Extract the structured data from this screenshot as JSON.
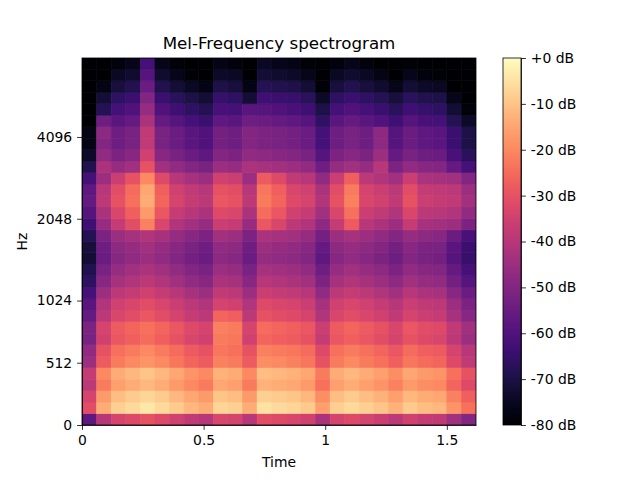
{
  "chart_data": {
    "type": "heatmap",
    "title": "Mel-Frequency spectrogram",
    "x_label": "Time",
    "y_label": "Hz",
    "color": "magma",
    "xlim": [
      0,
      1.62
    ],
    "ylim": [
      0,
      8000
    ],
    "xticks": [
      0,
      0.5,
      1,
      1.5
    ],
    "yticks": [
      0,
      512,
      1024,
      2048,
      4096
    ],
    "x_bins": [
      0,
      0.06,
      0.12,
      0.18,
      0.24,
      0.3,
      0.36,
      0.42,
      0.48,
      0.54,
      0.6,
      0.66,
      0.72,
      0.78,
      0.84,
      0.9,
      0.96,
      1.02,
      1.08,
      1.14,
      1.2,
      1.26,
      1.32,
      1.38,
      1.44,
      1.5,
      1.56,
      1.62
    ],
    "y_bins": [
      0,
      94,
      189,
      283,
      377,
      472,
      566,
      660,
      755,
      849,
      943,
      1039,
      1146,
      1263,
      1392,
      1534,
      1691,
      1863,
      2053,
      2263,
      2494,
      2748,
      3029,
      3339,
      3680,
      4055,
      4469,
      4926,
      5428,
      5982,
      6593,
      7270,
      8000
    ],
    "cells": [
      [
        -57,
        -40,
        -34,
        -32,
        -30,
        -32,
        -35,
        -38,
        -40,
        -33,
        -34,
        -40,
        -31,
        -32,
        -33,
        -35,
        -42,
        -34,
        -32,
        -34,
        -36,
        -39,
        -35,
        -37,
        -38,
        -44,
        -50
      ],
      [
        -31,
        -14,
        -8,
        -6,
        -4,
        -6,
        -9,
        -12,
        -14,
        -7,
        -8,
        -14,
        -5,
        -6,
        -7,
        -9,
        -16,
        -8,
        -6,
        -8,
        -10,
        -13,
        -9,
        -11,
        -12,
        -18,
        -24
      ],
      [
        -34,
        -17,
        -11,
        -9,
        -7,
        -9,
        -12,
        -15,
        -17,
        -10,
        -11,
        -17,
        -8,
        -9,
        -10,
        -12,
        -19,
        -11,
        -9,
        -11,
        -13,
        -16,
        -12,
        -14,
        -15,
        -21,
        -27
      ],
      [
        -39,
        -22,
        -16,
        -14,
        -12,
        -14,
        -17,
        -20,
        -22,
        -15,
        -16,
        -22,
        -13,
        -14,
        -15,
        -17,
        -24,
        -16,
        -14,
        -16,
        -18,
        -21,
        -17,
        -19,
        -20,
        -26,
        -32
      ],
      [
        -37,
        -20,
        -14,
        -12,
        -10,
        -12,
        -15,
        -18,
        -20,
        -13,
        -14,
        -20,
        -11,
        -12,
        -13,
        -15,
        -22,
        -14,
        -12,
        -14,
        -16,
        -19,
        -15,
        -17,
        -18,
        -24,
        -30
      ],
      [
        -45,
        -28,
        -22,
        -20,
        -18,
        -20,
        -23,
        -26,
        -28,
        -21,
        -22,
        -28,
        -19,
        -20,
        -21,
        -23,
        -30,
        -22,
        -20,
        -22,
        -24,
        -27,
        -23,
        -25,
        -26,
        -32,
        -38
      ],
      [
        -47,
        -30,
        -24,
        -22,
        -20,
        -22,
        -25,
        -28,
        -30,
        -23,
        -24,
        -30,
        -21,
        -22,
        -23,
        -25,
        -32,
        -24,
        -22,
        -24,
        -26,
        -29,
        -25,
        -27,
        -28,
        -34,
        -40
      ],
      [
        -52,
        -35,
        -29,
        -27,
        -25,
        -27,
        -30,
        -33,
        -35,
        -22,
        -23,
        -35,
        -26,
        -27,
        -28,
        -30,
        -37,
        -29,
        -27,
        -29,
        -31,
        -34,
        -30,
        -32,
        -33,
        -39,
        -45
      ],
      [
        -51,
        -34,
        -28,
        -26,
        -24,
        -26,
        -29,
        -32,
        -34,
        -21,
        -22,
        -34,
        -25,
        -26,
        -27,
        -29,
        -36,
        -28,
        -26,
        -28,
        -30,
        -33,
        -29,
        -31,
        -32,
        -38,
        -44
      ],
      [
        -56,
        -39,
        -33,
        -31,
        -29,
        -31,
        -34,
        -37,
        -39,
        -26,
        -27,
        -39,
        -30,
        -31,
        -32,
        -34,
        -41,
        -33,
        -31,
        -33,
        -35,
        -38,
        -34,
        -36,
        -37,
        -43,
        -49
      ],
      [
        -58,
        -41,
        -35,
        -33,
        -31,
        -33,
        -36,
        -39,
        -41,
        -34,
        -35,
        -41,
        -32,
        -33,
        -34,
        -36,
        -43,
        -35,
        -33,
        -35,
        -37,
        -40,
        -36,
        -38,
        -39,
        -45,
        -51
      ],
      [
        -62,
        -45,
        -39,
        -37,
        -35,
        -37,
        -40,
        -43,
        -45,
        -38,
        -39,
        -45,
        -36,
        -37,
        -38,
        -40,
        -47,
        -39,
        -37,
        -39,
        -41,
        -44,
        -40,
        -42,
        -43,
        -49,
        -55
      ],
      [
        -66,
        -49,
        -43,
        -41,
        -39,
        -41,
        -44,
        -47,
        -49,
        -42,
        -43,
        -49,
        -40,
        -41,
        -42,
        -44,
        -51,
        -43,
        -41,
        -43,
        -45,
        -48,
        -44,
        -46,
        -47,
        -53,
        -59
      ],
      [
        -69,
        -52,
        -46,
        -44,
        -42,
        -44,
        -47,
        -50,
        -52,
        -45,
        -46,
        -52,
        -43,
        -44,
        -45,
        -47,
        -54,
        -46,
        -44,
        -46,
        -48,
        -51,
        -47,
        -49,
        -50,
        -56,
        -62
      ],
      [
        -72,
        -55,
        -49,
        -47,
        -45,
        -47,
        -50,
        -53,
        -55,
        -48,
        -49,
        -55,
        -46,
        -47,
        -48,
        -50,
        -57,
        -49,
        -47,
        -49,
        -51,
        -54,
        -50,
        -52,
        -53,
        -59,
        -65
      ],
      [
        -71,
        -54,
        -48,
        -46,
        -44,
        -46,
        -49,
        -52,
        -54,
        -47,
        -48,
        -54,
        -45,
        -46,
        -47,
        -49,
        -56,
        -48,
        -46,
        -48,
        -50,
        -53,
        -49,
        -51,
        -52,
        -58,
        -64
      ],
      [
        -68,
        -51,
        -45,
        -43,
        -41,
        -43,
        -46,
        -49,
        -51,
        -44,
        -45,
        -51,
        -42,
        -43,
        -44,
        -46,
        -53,
        -45,
        -43,
        -45,
        -47,
        -50,
        -46,
        -48,
        -49,
        -55,
        -61
      ],
      [
        -63,
        -46,
        -37,
        -31,
        -21,
        -33,
        -41,
        -44,
        -46,
        -36,
        -37,
        -46,
        -29,
        -33,
        -39,
        -41,
        -48,
        -37,
        -28,
        -40,
        -42,
        -45,
        -37,
        -43,
        -44,
        -45,
        -51
      ],
      [
        -59,
        -42,
        -33,
        -27,
        -17,
        -29,
        -37,
        -40,
        -42,
        -32,
        -33,
        -42,
        -25,
        -29,
        -35,
        -37,
        -44,
        -33,
        -24,
        -36,
        -38,
        -41,
        -33,
        -39,
        -40,
        -41,
        -47
      ],
      [
        -56,
        -39,
        -30,
        -24,
        -14,
        -26,
        -34,
        -37,
        -39,
        -29,
        -30,
        -39,
        -22,
        -26,
        -32,
        -34,
        -41,
        -30,
        -21,
        -33,
        -35,
        -38,
        -30,
        -36,
        -37,
        -38,
        -44
      ],
      [
        -57,
        -40,
        -31,
        -25,
        -15,
        -27,
        -35,
        -38,
        -40,
        -30,
        -31,
        -40,
        -23,
        -27,
        -33,
        -35,
        -42,
        -31,
        -22,
        -34,
        -36,
        -39,
        -31,
        -37,
        -38,
        -39,
        -45
      ],
      [
        -62,
        -45,
        -36,
        -30,
        -20,
        -32,
        -40,
        -43,
        -45,
        -35,
        -36,
        -45,
        -28,
        -32,
        -38,
        -40,
        -47,
        -36,
        -27,
        -39,
        -41,
        -44,
        -36,
        -42,
        -43,
        -44,
        -50
      ],
      [
        -69,
        -42,
        -46,
        -44,
        -30,
        -44,
        -47,
        -50,
        -52,
        -45,
        -46,
        -42,
        -43,
        -44,
        -45,
        -47,
        -54,
        -46,
        -44,
        -46,
        -40,
        -51,
        -47,
        -49,
        -50,
        -56,
        -62
      ],
      [
        -74,
        -47,
        -51,
        -49,
        -35,
        -49,
        -52,
        -55,
        -57,
        -50,
        -51,
        -47,
        -48,
        -49,
        -50,
        -52,
        -59,
        -51,
        -49,
        -51,
        -45,
        -56,
        -52,
        -54,
        -55,
        -61,
        -67
      ],
      [
        -77,
        -50,
        -54,
        -52,
        -38,
        -52,
        -55,
        -58,
        -60,
        -53,
        -54,
        -50,
        -51,
        -52,
        -53,
        -55,
        -62,
        -54,
        -52,
        -54,
        -48,
        -59,
        -55,
        -57,
        -58,
        -64,
        -70
      ],
      [
        -77,
        -48,
        -54,
        -52,
        -38,
        -52,
        -55,
        -58,
        -60,
        -53,
        -54,
        -50,
        -51,
        -52,
        -53,
        -55,
        -62,
        -54,
        -52,
        -54,
        -48,
        -59,
        -55,
        -57,
        -58,
        -64,
        -70
      ],
      [
        -80,
        -54,
        -58,
        -56,
        -42,
        -56,
        -59,
        -62,
        -64,
        -57,
        -58,
        -54,
        -55,
        -56,
        -57,
        -59,
        -66,
        -58,
        -56,
        -58,
        -60,
        -63,
        -59,
        -61,
        -62,
        -68,
        -74
      ],
      [
        -80,
        -68,
        -62,
        -60,
        -46,
        -60,
        -63,
        -66,
        -68,
        -61,
        -62,
        -58,
        -59,
        -60,
        -61,
        -63,
        -70,
        -62,
        -60,
        -62,
        -64,
        -67,
        -63,
        -65,
        -66,
        -72,
        -78
      ],
      [
        -80,
        -72,
        -66,
        -64,
        -50,
        -64,
        -67,
        -70,
        -72,
        -65,
        -66,
        -72,
        -63,
        -64,
        -65,
        -67,
        -74,
        -66,
        -64,
        -66,
        -68,
        -71,
        -67,
        -69,
        -70,
        -76,
        -80
      ],
      [
        -80,
        -77,
        -71,
        -69,
        -55,
        -69,
        -72,
        -75,
        -77,
        -70,
        -71,
        -77,
        -68,
        -69,
        -70,
        -72,
        -79,
        -71,
        -69,
        -71,
        -73,
        -76,
        -72,
        -74,
        -75,
        -80,
        -80
      ],
      [
        -80,
        -80,
        -75,
        -73,
        -59,
        -73,
        -76,
        -79,
        -80,
        -74,
        -75,
        -80,
        -72,
        -73,
        -74,
        -76,
        -80,
        -75,
        -73,
        -75,
        -77,
        -80,
        -76,
        -78,
        -79,
        -80,
        -80
      ],
      [
        -80,
        -80,
        -78,
        -76,
        -62,
        -76,
        -79,
        -80,
        -80,
        -77,
        -78,
        -80,
        -75,
        -76,
        -77,
        -79,
        -80,
        -78,
        -76,
        -78,
        -80,
        -80,
        -79,
        -80,
        -80,
        -80,
        -80
      ]
    ],
    "colorbar": {
      "range": [
        -80,
        0
      ],
      "ticks": [
        {
          "value": 0,
          "label": "+0 dB"
        },
        {
          "value": -10,
          "label": "-10 dB"
        },
        {
          "value": -20,
          "label": "-20 dB"
        },
        {
          "value": -30,
          "label": "-30 dB"
        },
        {
          "value": -40,
          "label": "-40 dB"
        },
        {
          "value": -50,
          "label": "-50 dB"
        },
        {
          "value": -60,
          "label": "-60 dB"
        },
        {
          "value": -70,
          "label": "-70 dB"
        },
        {
          "value": -80,
          "label": "-80 dB"
        }
      ]
    }
  }
}
